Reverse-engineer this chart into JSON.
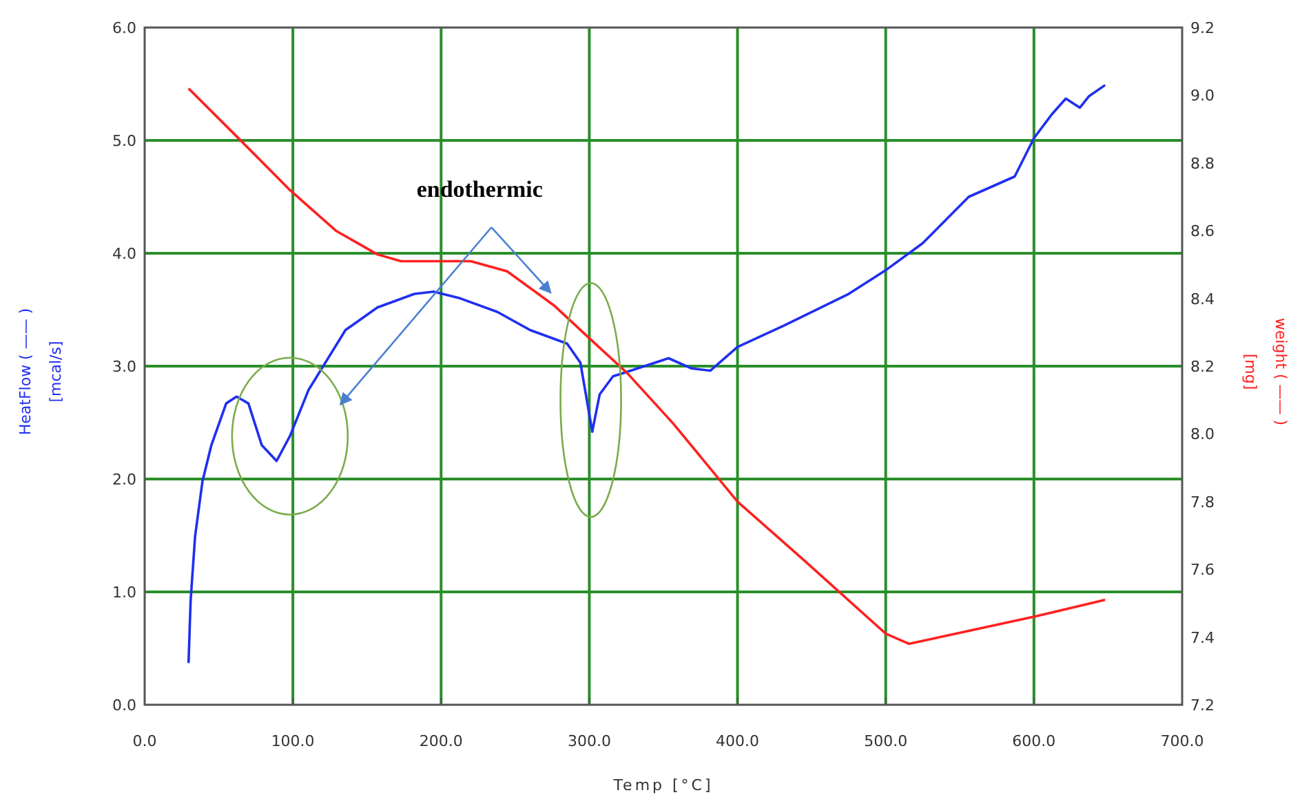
{
  "chart_data": {
    "type": "line",
    "xlabel": "Temp [°C]",
    "ylabel": "HeatFlow ( —— )\n[mcal/s]",
    "y2label": "weight ( —— )\n[mg]",
    "annotations": [
      "endothermic"
    ],
    "xlim": [
      0,
      700
    ],
    "xticks": [
      {
        "value": 0,
        "label": "0.0"
      },
      {
        "value": 100,
        "label": "100.0"
      },
      {
        "value": 200,
        "label": "200.0"
      },
      {
        "value": 300,
        "label": "300.0"
      },
      {
        "value": 400,
        "label": "400.0"
      },
      {
        "value": 500,
        "label": "500.0"
      },
      {
        "value": 600,
        "label": "600.0"
      },
      {
        "value": 700,
        "label": "700.0"
      }
    ],
    "ylim": [
      0,
      6
    ],
    "yticks": [
      {
        "value": 0,
        "label": "0.0"
      },
      {
        "value": 1,
        "label": "1.0"
      },
      {
        "value": 2,
        "label": "2.0"
      },
      {
        "value": 3,
        "label": "3.0"
      },
      {
        "value": 4,
        "label": "4.0"
      },
      {
        "value": 5,
        "label": "5.0"
      },
      {
        "value": 6,
        "label": "6.0"
      }
    ],
    "y2lim": [
      7.2,
      9.2
    ],
    "y2ticks": [
      7.2,
      7.4,
      7.6,
      7.8,
      {
        "value": 8,
        "label": "8.0"
      },
      8.2,
      8.4,
      8.6,
      8.8,
      {
        "value": 9,
        "label": "9.0"
      },
      9.2
    ],
    "grid": true,
    "marker": "none",
    "line_style": "solid",
    "series": [
      {
        "color": "#1f2ff0",
        "x": [
          29.6,
          31,
          34,
          39,
          45,
          55,
          62,
          70,
          79,
          89,
          98,
          110.6,
          120,
          135.5,
          157,
          182,
          195,
          213,
          238,
          260,
          285,
          294,
          302,
          307,
          316,
          325.5,
          353.5,
          369,
          381.6,
          400,
          431.5,
          475,
          500,
          525,
          556,
          587,
          600,
          612,
          621.5,
          631,
          637,
          648
        ],
        "values": [
          0.37,
          0.92,
          1.49,
          1.98,
          2.3,
          2.67,
          2.73,
          2.67,
          2.3,
          2.16,
          2.38,
          2.79,
          2.99,
          3.32,
          3.52,
          3.64,
          3.66,
          3.6,
          3.48,
          3.32,
          3.2,
          3.03,
          2.42,
          2.75,
          2.91,
          2.95,
          3.07,
          2.98,
          2.96,
          3.17,
          3.36,
          3.64,
          3.85,
          4.09,
          4.5,
          4.68,
          5.02,
          5.23,
          5.37,
          5.29,
          5.39,
          5.49
        ]
      },
      {
        "color": "#ff2020",
        "axis": "y2",
        "x": [
          29.6,
          64,
          98,
          129,
          157,
          173,
          198,
          220,
          244.6,
          276,
          300.6,
          325.5,
          356.7,
          400,
          444,
          500,
          515.6,
          600,
          648
        ],
        "values": [
          9.02,
          8.87,
          8.72,
          8.6,
          8.53,
          8.51,
          8.51,
          8.51,
          8.48,
          8.38,
          8.28,
          8.18,
          8.03,
          7.8,
          7.63,
          7.41,
          7.38,
          7.46,
          7.51
        ]
      }
    ]
  }
}
